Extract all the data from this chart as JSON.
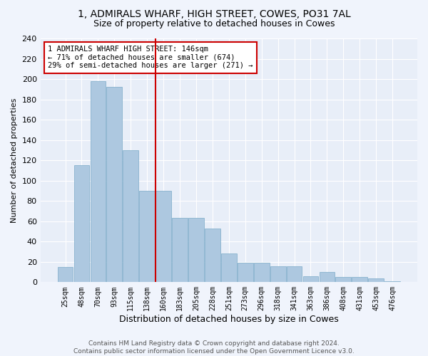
{
  "title1": "1, ADMIRALS WHARF, HIGH STREET, COWES, PO31 7AL",
  "title2": "Size of property relative to detached houses in Cowes",
  "xlabel": "Distribution of detached houses by size in Cowes",
  "ylabel": "Number of detached properties",
  "categories": [
    "25sqm",
    "48sqm",
    "70sqm",
    "93sqm",
    "115sqm",
    "138sqm",
    "160sqm",
    "183sqm",
    "205sqm",
    "228sqm",
    "251sqm",
    "273sqm",
    "296sqm",
    "318sqm",
    "341sqm",
    "363sqm",
    "386sqm",
    "408sqm",
    "431sqm",
    "453sqm",
    "476sqm"
  ],
  "values": [
    15,
    115,
    198,
    192,
    130,
    90,
    90,
    63,
    63,
    53,
    28,
    19,
    19,
    16,
    16,
    6,
    10,
    5,
    5,
    4,
    1
  ],
  "bar_color": "#adc8e0",
  "bar_edge_color": "#7aaac8",
  "vline_x": 5.5,
  "vline_color": "#cc0000",
  "annotation_text": "1 ADMIRALS WHARF HIGH STREET: 146sqm\n← 71% of detached houses are smaller (674)\n29% of semi-detached houses are larger (271) →",
  "annotation_box_color": "#ffffff",
  "annotation_box_edge": "#cc0000",
  "footer1": "Contains HM Land Registry data © Crown copyright and database right 2024.",
  "footer2": "Contains public sector information licensed under the Open Government Licence v3.0.",
  "ylim": [
    0,
    240
  ],
  "yticks": [
    0,
    20,
    40,
    60,
    80,
    100,
    120,
    140,
    160,
    180,
    200,
    220,
    240
  ],
  "background_color": "#e8eef8",
  "fig_background": "#f0f4fc",
  "grid_color": "#ffffff",
  "title1_fontsize": 10,
  "title2_fontsize": 9
}
